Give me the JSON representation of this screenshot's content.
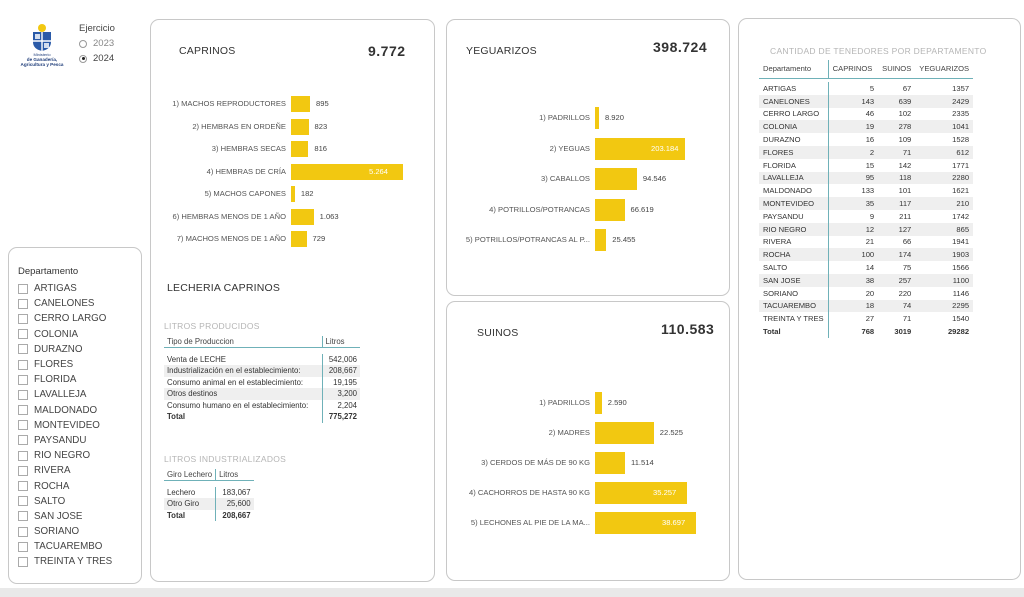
{
  "logo": {
    "line1": "Ministerio",
    "line2": "de Ganadería,",
    "line3": "Agricultura y Pesca"
  },
  "ejercicio": {
    "label": "Ejercicio",
    "options": [
      {
        "label": "2023",
        "selected": false
      },
      {
        "label": "2024",
        "selected": true
      }
    ]
  },
  "departamento_slicer": {
    "title": "Departamento",
    "items": [
      "ARTIGAS",
      "CANELONES",
      "CERRO LARGO",
      "COLONIA",
      "DURAZNO",
      "FLORES",
      "FLORIDA",
      "LAVALLEJA",
      "MALDONADO",
      "MONTEVIDEO",
      "PAYSANDU",
      "RIO NEGRO",
      "RIVERA",
      "ROCHA",
      "SALTO",
      "SAN JOSE",
      "SORIANO",
      "TACUAREMBO",
      "TREINTA Y TRES"
    ]
  },
  "caprinos": {
    "title": "CAPRINOS",
    "total": "9.772",
    "bars": [
      {
        "label": "1) MACHOS REPRODUCTORES",
        "value": 895,
        "display": "895"
      },
      {
        "label": "2) HEMBRAS EN ORDEÑE",
        "value": 823,
        "display": "823"
      },
      {
        "label": "3) HEMBRAS SECAS",
        "value": 816,
        "display": "816"
      },
      {
        "label": "4) HEMBRAS DE CRÍA",
        "value": 5264,
        "display": "5.264"
      },
      {
        "label": "5) MACHOS CAPONES",
        "value": 182,
        "display": "182"
      },
      {
        "label": "6) HEMBRAS MENOS DE 1 AÑO",
        "value": 1063,
        "display": "1.063"
      },
      {
        "label": "7) MACHOS MENOS DE 1 AÑO",
        "value": 729,
        "display": "729"
      }
    ]
  },
  "lecheria": {
    "title": "LECHERIA  CAPRINOS",
    "litros_producidos": {
      "caption": "LITROS PRODUCIDOS",
      "headers": [
        "Tipo de Produccion",
        "Litros"
      ],
      "rows": [
        [
          "Venta de LECHE",
          "542,006"
        ],
        [
          "Industrialización en el establecimiento:",
          "208,667"
        ],
        [
          "Consumo animal en el establecimiento:",
          "19,195"
        ],
        [
          "Otros destinos",
          "3,200"
        ],
        [
          "Consumo humano en el establecimiento:",
          "2,204"
        ]
      ],
      "total": [
        "Total",
        "775,272"
      ]
    },
    "litros_industrializados": {
      "caption": "LITROS INDUSTRIALIZADOS",
      "headers": [
        "Giro Lechero",
        "Litros"
      ],
      "rows": [
        [
          "Lechero",
          "183,067"
        ],
        [
          "Otro Giro",
          "25,600"
        ]
      ],
      "total": [
        "Total",
        "208,667"
      ]
    }
  },
  "yeguarizos": {
    "title": "YEGUARIZOS",
    "total": "398.724",
    "bars": [
      {
        "label": "1) PADRILLOS",
        "value": 8920,
        "display": "8.920"
      },
      {
        "label": "2) YEGUAS",
        "value": 203184,
        "display": "203.184"
      },
      {
        "label": "3) CABALLOS",
        "value": 94546,
        "display": "94.546"
      },
      {
        "label": "4) POTRILLOS/POTRANCAS",
        "value": 66619,
        "display": "66.619"
      },
      {
        "label": "5) POTRILLOS/POTRANCAS AL P...",
        "value": 25455,
        "display": "25.455"
      }
    ]
  },
  "suinos": {
    "title": "SUINOS",
    "total": "110.583",
    "bars": [
      {
        "label": "1) PADRILLOS",
        "value": 2590,
        "display": "2.590"
      },
      {
        "label": "2) MADRES",
        "value": 22525,
        "display": "22.525"
      },
      {
        "label": "3) CERDOS DE MÁS DE 90 KG",
        "value": 11514,
        "display": "11.514"
      },
      {
        "label": "4) CACHORROS DE HASTA 90 KG",
        "value": 35257,
        "display": "35.257"
      },
      {
        "label": "5) LECHONES AL PIE DE LA MA...",
        "value": 38697,
        "display": "38.697"
      }
    ]
  },
  "tenedores": {
    "caption": "CANTIDAD DE TENEDORES POR DEPARTAMENTO",
    "headers": [
      "Departamento",
      "CAPRINOS",
      "SUINOS",
      "YEGUARIZOS"
    ],
    "rows": [
      [
        "ARTIGAS",
        "5",
        "67",
        "1357"
      ],
      [
        "CANELONES",
        "143",
        "639",
        "2429"
      ],
      [
        "CERRO LARGO",
        "46",
        "102",
        "2335"
      ],
      [
        "COLONIA",
        "19",
        "278",
        "1041"
      ],
      [
        "DURAZNO",
        "16",
        "109",
        "1528"
      ],
      [
        "FLORES",
        "2",
        "71",
        "612"
      ],
      [
        "FLORIDA",
        "15",
        "142",
        "1771"
      ],
      [
        "LAVALLEJA",
        "95",
        "118",
        "2280"
      ],
      [
        "MALDONADO",
        "133",
        "101",
        "1621"
      ],
      [
        "MONTEVIDEO",
        "35",
        "117",
        "210"
      ],
      [
        "PAYSANDU",
        "9",
        "211",
        "1742"
      ],
      [
        "RIO NEGRO",
        "12",
        "127",
        "865"
      ],
      [
        "RIVERA",
        "21",
        "66",
        "1941"
      ],
      [
        "ROCHA",
        "100",
        "174",
        "1903"
      ],
      [
        "SALTO",
        "14",
        "75",
        "1566"
      ],
      [
        "SAN JOSE",
        "38",
        "257",
        "1100"
      ],
      [
        "SORIANO",
        "20",
        "220",
        "1146"
      ],
      [
        "TACUAREMBO",
        "18",
        "74",
        "2295"
      ],
      [
        "TREINTA Y TRES",
        "27",
        "71",
        "1540"
      ]
    ],
    "total": [
      "Total",
      "768",
      "3019",
      "29282"
    ]
  },
  "colors": {
    "bar": "#f2c811",
    "accent_line": "#6fb1b8",
    "card_border": "#c8c8c8"
  }
}
